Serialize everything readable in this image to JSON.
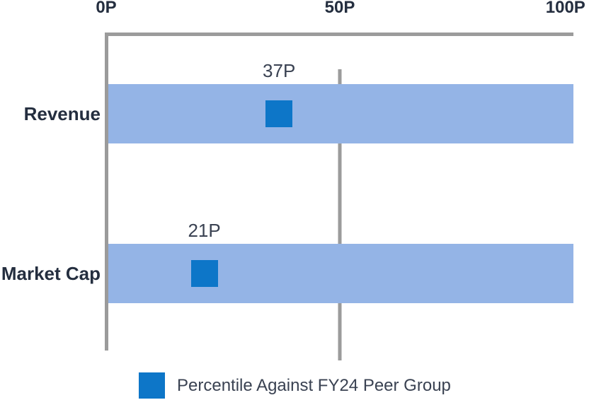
{
  "chart_data": {
    "type": "bar",
    "orientation": "horizontal",
    "categories": [
      "Revenue",
      "Market Cap"
    ],
    "values": [
      37,
      21
    ],
    "value_labels": [
      "37P",
      "21P"
    ],
    "x_axis": {
      "position": "top",
      "range": [
        0,
        100
      ],
      "ticks": [
        {
          "label": "0P",
          "value": 0
        },
        {
          "label": "50P",
          "value": 50
        },
        {
          "label": "100P",
          "value": 100
        }
      ]
    },
    "reference_line": {
      "value": 50
    },
    "legend": {
      "label": "Percentile Against FY24 Peer Group"
    },
    "colors": {
      "band": "#94b4e6",
      "marker": "#0d76c8",
      "axis_gray": "#9b9b9b",
      "text_dark": "#242e3f",
      "text_value": "#3a4252"
    }
  }
}
